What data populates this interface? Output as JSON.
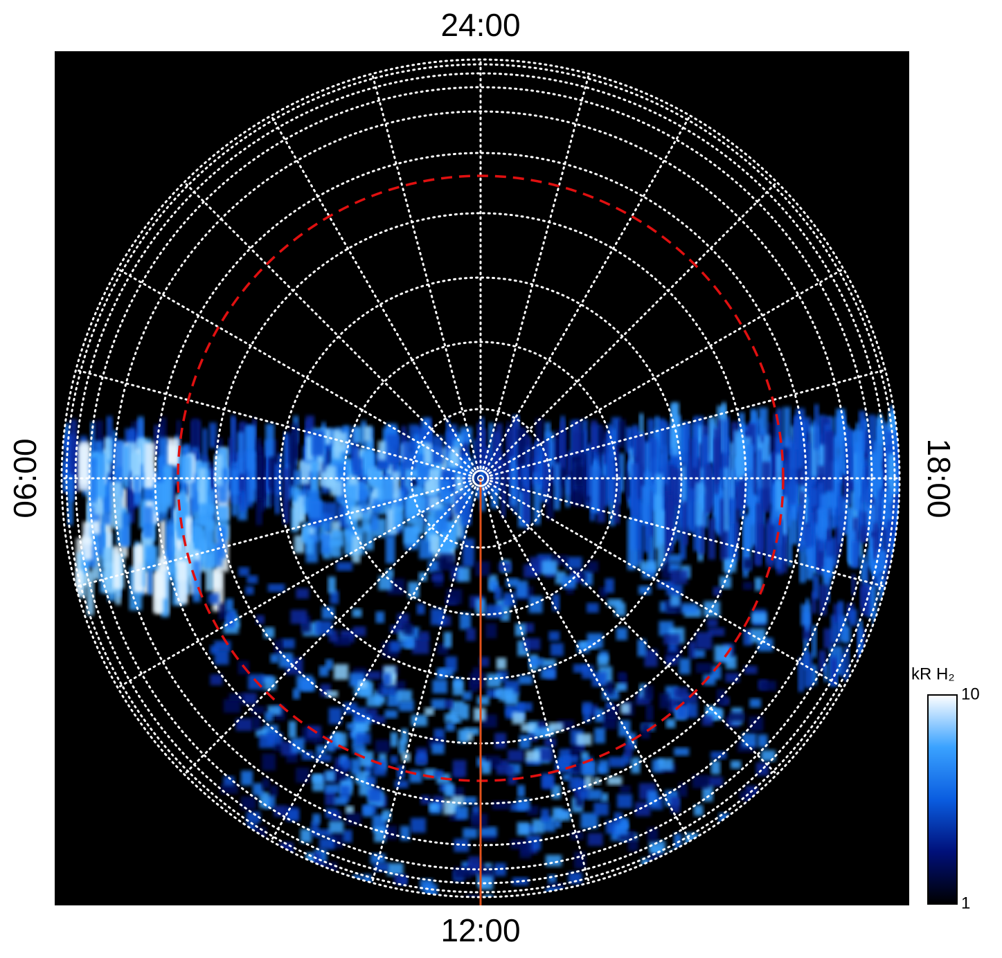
{
  "labels": {
    "top": "24:00",
    "left": "06:00",
    "bottom": "12:00",
    "right": "18:00"
  },
  "colorbar": {
    "label": "kR H₂",
    "range": [
      1,
      10
    ],
    "ticks": [
      1,
      10
    ],
    "scale": "log",
    "colors": [
      "#000000",
      "#00107a",
      "#0a5de0",
      "#3aa2ff",
      "#ffffff"
    ]
  }
}
